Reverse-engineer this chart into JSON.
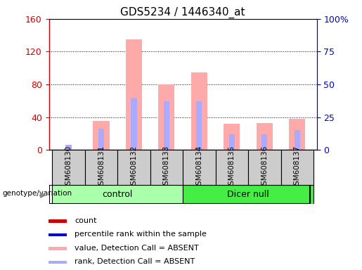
{
  "title": "GDS5234 / 1446340_at",
  "samples": [
    "GSM608130",
    "GSM608131",
    "GSM608132",
    "GSM608133",
    "GSM608134",
    "GSM608135",
    "GSM608136",
    "GSM608137"
  ],
  "pink_bars": [
    0,
    35,
    135,
    80,
    95,
    32,
    33,
    38
  ],
  "blue_bars_right_scale": [
    4,
    16,
    40,
    37,
    37,
    12,
    12,
    15
  ],
  "ylim_left": [
    0,
    160
  ],
  "ylim_right": [
    0,
    100
  ],
  "yticks_left": [
    0,
    40,
    80,
    120,
    160
  ],
  "ytick_labels_left": [
    "0",
    "40",
    "80",
    "120",
    "160"
  ],
  "yticks_right": [
    0,
    25,
    50,
    75,
    100
  ],
  "ytick_labels_right": [
    "0",
    "25",
    "50",
    "75",
    "100%"
  ],
  "left_axis_color": "#cc0000",
  "right_axis_color": "#0000cc",
  "plot_bg": "#ffffff",
  "control_color": "#aaffaa",
  "dicer_color": "#44ee44",
  "sample_bg_color": "#cccccc",
  "legend_items": [
    {
      "label": "count",
      "color": "#cc0000"
    },
    {
      "label": "percentile rank within the sample",
      "color": "#0000cc"
    },
    {
      "label": "value, Detection Call = ABSENT",
      "color": "#ffaaaa"
    },
    {
      "label": "rank, Detection Call = ABSENT",
      "color": "#aaaaff"
    }
  ],
  "genotype_label": "genotype/variation",
  "pink_bar_width": 0.5,
  "blue_bar_width": 0.18
}
